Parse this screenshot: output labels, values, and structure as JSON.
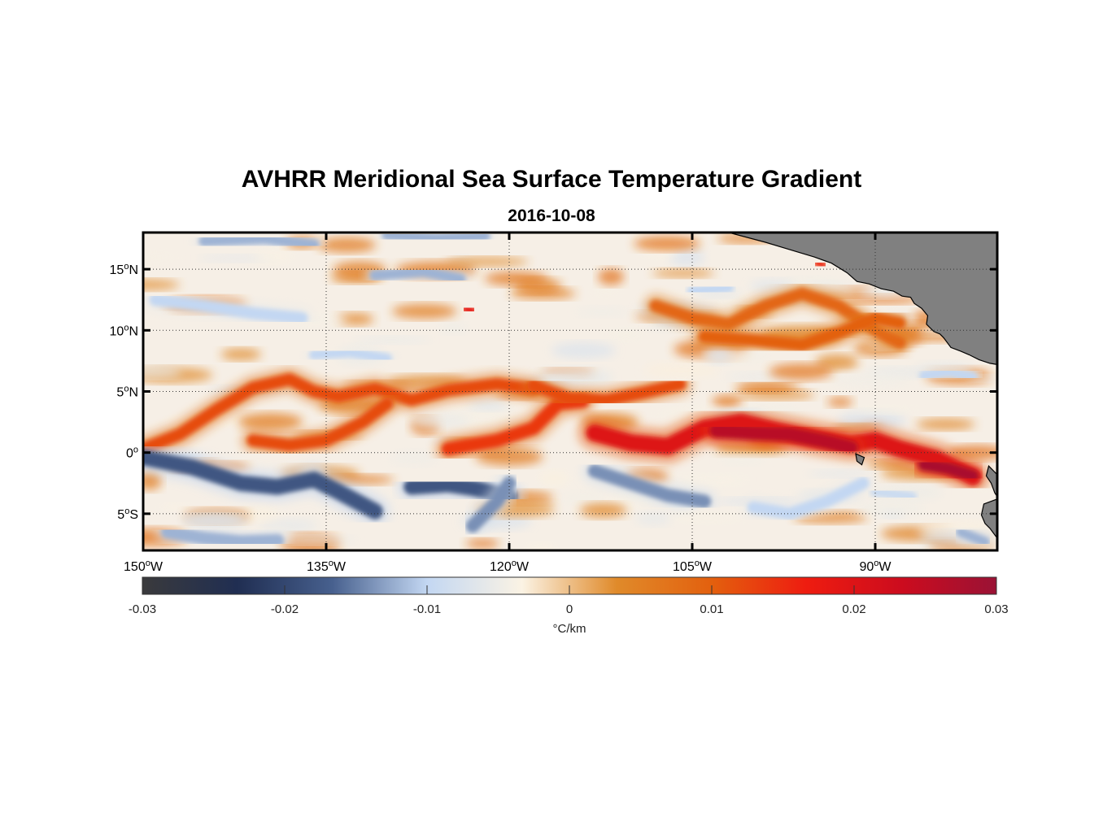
{
  "title": "AVHRR Meridional Sea Surface Temperature Gradient",
  "subtitle": "2016-10-08",
  "map": {
    "lon_range": [
      -150,
      -80
    ],
    "lat_range": [
      -8,
      18
    ],
    "x_ticks": [
      {
        "lon": -150,
        "deg": "150",
        "hemi": "W"
      },
      {
        "lon": -135,
        "deg": "135",
        "hemi": "W"
      },
      {
        "lon": -120,
        "deg": "120",
        "hemi": "W"
      },
      {
        "lon": -105,
        "deg": "105",
        "hemi": "W"
      },
      {
        "lon": -90,
        "deg": "90",
        "hemi": "W"
      }
    ],
    "y_ticks": [
      {
        "lat": 15,
        "deg": "15",
        "hemi": "N"
      },
      {
        "lat": 10,
        "deg": "10",
        "hemi": "N"
      },
      {
        "lat": 5,
        "deg": "5",
        "hemi": "N"
      },
      {
        "lat": 0,
        "deg": "0",
        "hemi": ""
      },
      {
        "lat": -5,
        "deg": "5",
        "hemi": "S"
      }
    ],
    "grid": "dotted",
    "land_color": "#808080",
    "fronts": [
      {
        "kind": "warm",
        "strength": 0.012,
        "width": 1.0,
        "points": [
          [
            -150,
            0.3
          ],
          [
            -147,
            1.5
          ],
          [
            -144,
            3.5
          ],
          [
            -141,
            5.3
          ],
          [
            -138,
            6.0
          ],
          [
            -136,
            5.0
          ],
          [
            -134,
            4.6
          ],
          [
            -131,
            5.2
          ],
          [
            -128,
            4.3
          ],
          [
            -125,
            5.1
          ],
          [
            -121,
            5.6
          ],
          [
            -118,
            5.2
          ]
        ]
      },
      {
        "kind": "warm",
        "strength": 0.012,
        "width": 1.0,
        "points": [
          [
            -141,
            1.0
          ],
          [
            -138,
            0.6
          ],
          [
            -135,
            1.0
          ],
          [
            -132,
            2.5
          ],
          [
            -130,
            4.0
          ]
        ]
      },
      {
        "kind": "warm",
        "strength": 0.014,
        "width": 1.1,
        "points": [
          [
            -125,
            0.3
          ],
          [
            -121,
            1.0
          ],
          [
            -118,
            2.0
          ],
          [
            -116,
            4.0
          ],
          [
            -114,
            4.2
          ]
        ]
      },
      {
        "kind": "warm",
        "strength": 0.012,
        "width": 1.0,
        "points": [
          [
            -118,
            5.5
          ],
          [
            -115,
            4.4
          ],
          [
            -112,
            4.3
          ],
          [
            -109,
            4.9
          ],
          [
            -106,
            5.6
          ]
        ]
      },
      {
        "kind": "warm",
        "strength": 0.02,
        "width": 1.4,
        "points": [
          [
            -113,
            1.6
          ],
          [
            -110,
            0.8
          ],
          [
            -107,
            0.5
          ],
          [
            -104,
            2.0
          ],
          [
            -101,
            2.5
          ],
          [
            -98,
            1.8
          ],
          [
            -95,
            1.2
          ],
          [
            -92,
            0.7
          ],
          [
            -90,
            1.0
          ],
          [
            -88,
            0.3
          ],
          [
            -85,
            -0.5
          ],
          [
            -82,
            -2.0
          ]
        ]
      },
      {
        "kind": "warm",
        "strength": 0.026,
        "width": 1.2,
        "points": [
          [
            -103,
            1.8
          ],
          [
            -100,
            1.6
          ],
          [
            -97,
            1.5
          ],
          [
            -94,
            0.9
          ],
          [
            -92,
            0.4
          ]
        ]
      },
      {
        "kind": "warm",
        "strength": 0.028,
        "width": 1.0,
        "points": [
          [
            -86,
            -1.0
          ],
          [
            -84,
            -1.3
          ],
          [
            -82,
            -1.9
          ]
        ]
      },
      {
        "kind": "warm",
        "strength": 0.009,
        "width": 1.0,
        "points": [
          [
            -108,
            12.0
          ],
          [
            -105,
            11.0
          ],
          [
            -102,
            10.5
          ],
          [
            -99,
            12.0
          ],
          [
            -96,
            13.0
          ],
          [
            -93,
            12.0
          ],
          [
            -90,
            10.0
          ],
          [
            -88,
            9.0
          ]
        ]
      },
      {
        "kind": "warm",
        "strength": 0.01,
        "width": 1.0,
        "points": [
          [
            -104,
            9.5
          ],
          [
            -100,
            9.2
          ],
          [
            -96,
            8.8
          ],
          [
            -93,
            9.8
          ],
          [
            -90,
            11.0
          ],
          [
            -88,
            10.6
          ]
        ]
      },
      {
        "kind": "warm",
        "strength": 0.018,
        "width": 0.6,
        "points": [
          [
            -123.6,
            11.8
          ],
          [
            -123.0,
            11.6
          ]
        ]
      },
      {
        "kind": "warm",
        "strength": 0.016,
        "width": 0.5,
        "points": [
          [
            -126.4,
            8.7
          ],
          [
            -125.8,
            8.7
          ]
        ]
      },
      {
        "kind": "warm",
        "strength": 0.016,
        "width": 0.5,
        "points": [
          [
            -94.8,
            15.5
          ],
          [
            -94.2,
            15.3
          ]
        ]
      },
      {
        "kind": "cold",
        "strength": 0.018,
        "width": 1.3,
        "points": [
          [
            -150,
            -0.4
          ],
          [
            -146,
            -1.2
          ],
          [
            -142,
            -2.5
          ],
          [
            -139,
            -2.8
          ],
          [
            -136,
            -2.2
          ],
          [
            -134,
            -3.2
          ],
          [
            -131,
            -4.8
          ]
        ]
      },
      {
        "kind": "cold",
        "strength": 0.018,
        "width": 1.3,
        "points": [
          [
            -128,
            -2.8
          ],
          [
            -125,
            -2.6
          ],
          [
            -123,
            -2.9
          ],
          [
            -120,
            -3.6
          ]
        ]
      },
      {
        "kind": "cold",
        "strength": 0.014,
        "width": 1.1,
        "points": [
          [
            -123,
            -6.0
          ],
          [
            -121,
            -4.0
          ],
          [
            -120,
            -2.5
          ]
        ]
      },
      {
        "kind": "cold",
        "strength": 0.014,
        "width": 1.1,
        "points": [
          [
            -113,
            -1.5
          ],
          [
            -110,
            -2.5
          ],
          [
            -107,
            -3.5
          ],
          [
            -104,
            -4.0
          ]
        ]
      },
      {
        "kind": "cold",
        "strength": 0.01,
        "width": 1.0,
        "points": [
          [
            -100,
            -4.5
          ],
          [
            -97,
            -5.0
          ],
          [
            -94,
            -4.0
          ],
          [
            -91,
            -2.5
          ]
        ]
      },
      {
        "kind": "cold",
        "strength": 0.012,
        "width": 1.1,
        "points": [
          [
            -148,
            -6.5
          ],
          [
            -145,
            -7.0
          ],
          [
            -142,
            -7.3
          ],
          [
            -139,
            -7.2
          ]
        ]
      },
      {
        "kind": "cold",
        "strength": 0.024,
        "width": 0.7,
        "points": [
          [
            -123.4,
            10.3
          ],
          [
            -122.6,
            10.3
          ]
        ]
      },
      {
        "kind": "cold",
        "strength": 0.01,
        "width": 1.0,
        "points": [
          [
            -149,
            12.5
          ],
          [
            -145,
            12.0
          ],
          [
            -141,
            11.4
          ],
          [
            -137,
            11.0
          ]
        ]
      },
      {
        "kind": "cold",
        "strength": 0.012,
        "width": 0.9,
        "points": [
          [
            -131,
            14.5
          ],
          [
            -127,
            14.8
          ],
          [
            -124,
            14.2
          ]
        ]
      },
      {
        "kind": "cold",
        "strength": 0.012,
        "width": 0.9,
        "points": [
          [
            -145,
            17.3
          ],
          [
            -140,
            17.5
          ],
          [
            -136,
            17.0
          ]
        ]
      },
      {
        "kind": "cold",
        "strength": 0.012,
        "width": 0.9,
        "points": [
          [
            -130,
            17.8
          ],
          [
            -126,
            17.5
          ],
          [
            -122,
            17.7
          ]
        ]
      },
      {
        "kind": "cold",
        "strength": 0.01,
        "width": 0.8,
        "points": [
          [
            -136,
            8.0
          ],
          [
            -133,
            8.2
          ],
          [
            -130,
            7.7
          ]
        ]
      },
      {
        "kind": "cold",
        "strength": 0.01,
        "width": 0.8,
        "points": [
          [
            -86,
            6.3
          ],
          [
            -84,
            6.6
          ],
          [
            -82,
            6.2
          ]
        ]
      },
      {
        "kind": "cold",
        "strength": 0.009,
        "width": 0.8,
        "points": [
          [
            -90,
            -3.2
          ],
          [
            -87,
            -3.6
          ]
        ]
      },
      {
        "kind": "cold",
        "strength": 0.012,
        "width": 0.8,
        "points": [
          [
            -83,
            -6.5
          ],
          [
            -81,
            -7.3
          ]
        ]
      },
      {
        "kind": "cold",
        "strength": 0.01,
        "width": 0.8,
        "points": [
          [
            -105,
            13.2
          ],
          [
            -102,
            13.5
          ]
        ]
      }
    ],
    "land": [
      [
        [
          -102,
          18
        ],
        [
          -99,
          17.2
        ],
        [
          -97,
          16.6
        ],
        [
          -95,
          16.0
        ],
        [
          -93.6,
          15.5
        ],
        [
          -92.3,
          14.7
        ],
        [
          -91.5,
          14.0
        ],
        [
          -90.5,
          13.8
        ],
        [
          -89.5,
          13.4
        ],
        [
          -88.5,
          13.2
        ],
        [
          -87.8,
          12.8
        ],
        [
          -87.1,
          12.7
        ],
        [
          -86.8,
          12.2
        ],
        [
          -86.2,
          11.8
        ],
        [
          -85.7,
          11.2
        ],
        [
          -85.8,
          10.5
        ],
        [
          -85.2,
          9.9
        ],
        [
          -84.7,
          9.7
        ],
        [
          -84.4,
          9.4
        ],
        [
          -83.8,
          8.6
        ],
        [
          -83.0,
          8.3
        ],
        [
          -82.3,
          8.0
        ],
        [
          -81.5,
          7.6
        ],
        [
          -80.6,
          7.3
        ],
        [
          -80,
          7.2
        ],
        [
          -80,
          18
        ]
      ],
      [
        [
          -80,
          -1.8
        ],
        [
          -80.7,
          -1.1
        ],
        [
          -80.9,
          -1.9
        ],
        [
          -80.5,
          -2.5
        ],
        [
          -80.2,
          -3.3
        ],
        [
          -80,
          -3.6
        ]
      ],
      [
        [
          -80,
          -3.8
        ],
        [
          -81.1,
          -4.2
        ],
        [
          -81.3,
          -5.1
        ],
        [
          -81.0,
          -5.8
        ],
        [
          -80.6,
          -6.2
        ],
        [
          -80,
          -7.0
        ]
      ],
      [
        [
          -91.6,
          -0.1
        ],
        [
          -90.9,
          -0.4
        ],
        [
          -91.1,
          -1.0
        ],
        [
          -91.5,
          -0.7
        ]
      ]
    ]
  },
  "colorbar": {
    "min": -0.03,
    "max": 0.03,
    "tick_labels": [
      "-0.03",
      "-0.02",
      "-0.01",
      "0",
      "0.01",
      "0.02",
      "0.03"
    ],
    "unit_label": "°C/km",
    "stops": [
      "#3a3a3c",
      "#202e52",
      "#47608e",
      "#c3d7f2",
      "#fbf3e4",
      "#e08a2a",
      "#e3600e",
      "#ee1c10",
      "#cc0c1e",
      "#9a1235"
    ]
  }
}
